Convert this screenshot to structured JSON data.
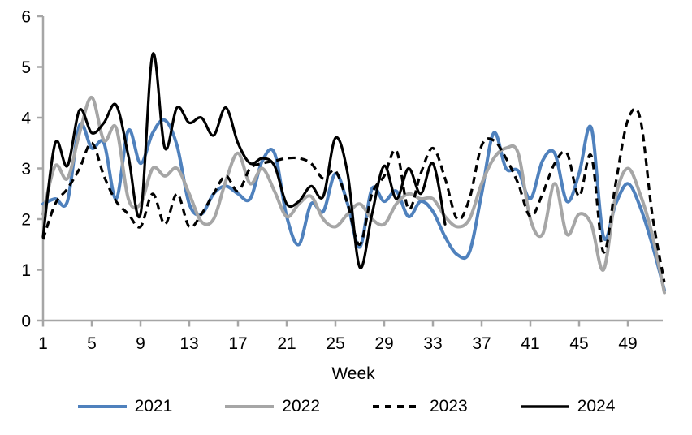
{
  "chart_data": {
    "type": "line",
    "title": "",
    "xlabel": "Week",
    "ylabel": "",
    "background_color": "#ffffff",
    "axis_color": "#a6a6a6",
    "text_color": "#000000",
    "grid": false,
    "legend_position": "bottom",
    "x_axis": {
      "min": 1,
      "max": 52,
      "tick_labels": [
        1,
        5,
        9,
        13,
        17,
        21,
        25,
        29,
        33,
        37,
        41,
        45,
        49
      ]
    },
    "y_axis": {
      "min": 0,
      "max": 6,
      "tick_labels": [
        0,
        1,
        2,
        3,
        4,
        5,
        6
      ]
    },
    "x_unit": "week_number",
    "series": [
      {
        "name": "2021",
        "color": "#4F81BD",
        "line_style": "solid",
        "start_week": 1,
        "values": [
          2.3,
          2.4,
          2.35,
          3.85,
          3.4,
          3.5,
          2.4,
          3.75,
          3.1,
          3.7,
          3.95,
          3.45,
          2.3,
          2.1,
          2.5,
          2.65,
          2.5,
          2.4,
          3.15,
          3.3,
          2.05,
          1.5,
          2.3,
          2.15,
          2.9,
          2.3,
          1.45,
          2.6,
          2.35,
          2.55,
          2.05,
          2.35,
          2.15,
          1.65,
          1.3,
          1.35,
          2.5,
          3.7,
          3.0,
          2.95,
          2.4,
          3.15,
          3.3,
          2.35,
          2.9,
          3.8,
          1.65,
          2.3,
          2.7,
          2.25,
          1.5,
          0.6
        ]
      },
      {
        "name": "2022",
        "color": "#A6A6A6",
        "line_style": "solid",
        "start_week": 1,
        "values": [
          2.1,
          3.05,
          2.8,
          3.7,
          4.4,
          3.55,
          3.8,
          2.4,
          2.3,
          3.0,
          2.85,
          3.0,
          2.5,
          1.95,
          2.0,
          2.75,
          3.3,
          2.7,
          3.0,
          2.55,
          2.05,
          2.3,
          2.45,
          2.0,
          1.85,
          2.1,
          2.3,
          2.0,
          1.9,
          2.3,
          2.5,
          2.4,
          2.4,
          2.05,
          1.85,
          2.0,
          2.7,
          3.2,
          3.4,
          3.3,
          2.0,
          1.7,
          2.7,
          1.7,
          2.1,
          1.9,
          1.0,
          2.45,
          3.0,
          2.5,
          1.7,
          0.55
        ]
      },
      {
        "name": "2023",
        "color": "#000000",
        "line_style": "dashed",
        "start_week": 1,
        "values": [
          1.6,
          2.3,
          2.6,
          3.0,
          3.5,
          2.85,
          2.35,
          2.1,
          1.85,
          2.5,
          1.9,
          2.5,
          1.85,
          2.1,
          2.5,
          2.85,
          2.55,
          3.0,
          3.1,
          3.15,
          3.2,
          3.2,
          3.1,
          2.8,
          2.95,
          2.3,
          1.5,
          2.5,
          2.85,
          3.35,
          2.2,
          2.9,
          3.4,
          2.8,
          2.0,
          2.4,
          3.45,
          3.55,
          3.2,
          2.7,
          2.05,
          2.5,
          3.1,
          3.3,
          2.45,
          3.25,
          1.35,
          2.7,
          3.95,
          4.0,
          2.1,
          0.75
        ]
      },
      {
        "name": "2024",
        "color": "#000000",
        "line_style": "solid",
        "start_week": 1,
        "values": [
          1.65,
          3.5,
          3.05,
          4.15,
          3.7,
          3.9,
          4.25,
          3.25,
          2.1,
          5.25,
          3.4,
          4.2,
          3.9,
          4.0,
          3.65,
          4.2,
          3.5,
          3.1,
          3.2,
          3.05,
          2.3,
          2.35,
          2.65,
          2.45,
          3.6,
          2.9,
          1.05,
          2.1,
          3.05,
          2.4,
          3.0,
          2.5,
          3.1,
          1.9
        ]
      }
    ]
  }
}
